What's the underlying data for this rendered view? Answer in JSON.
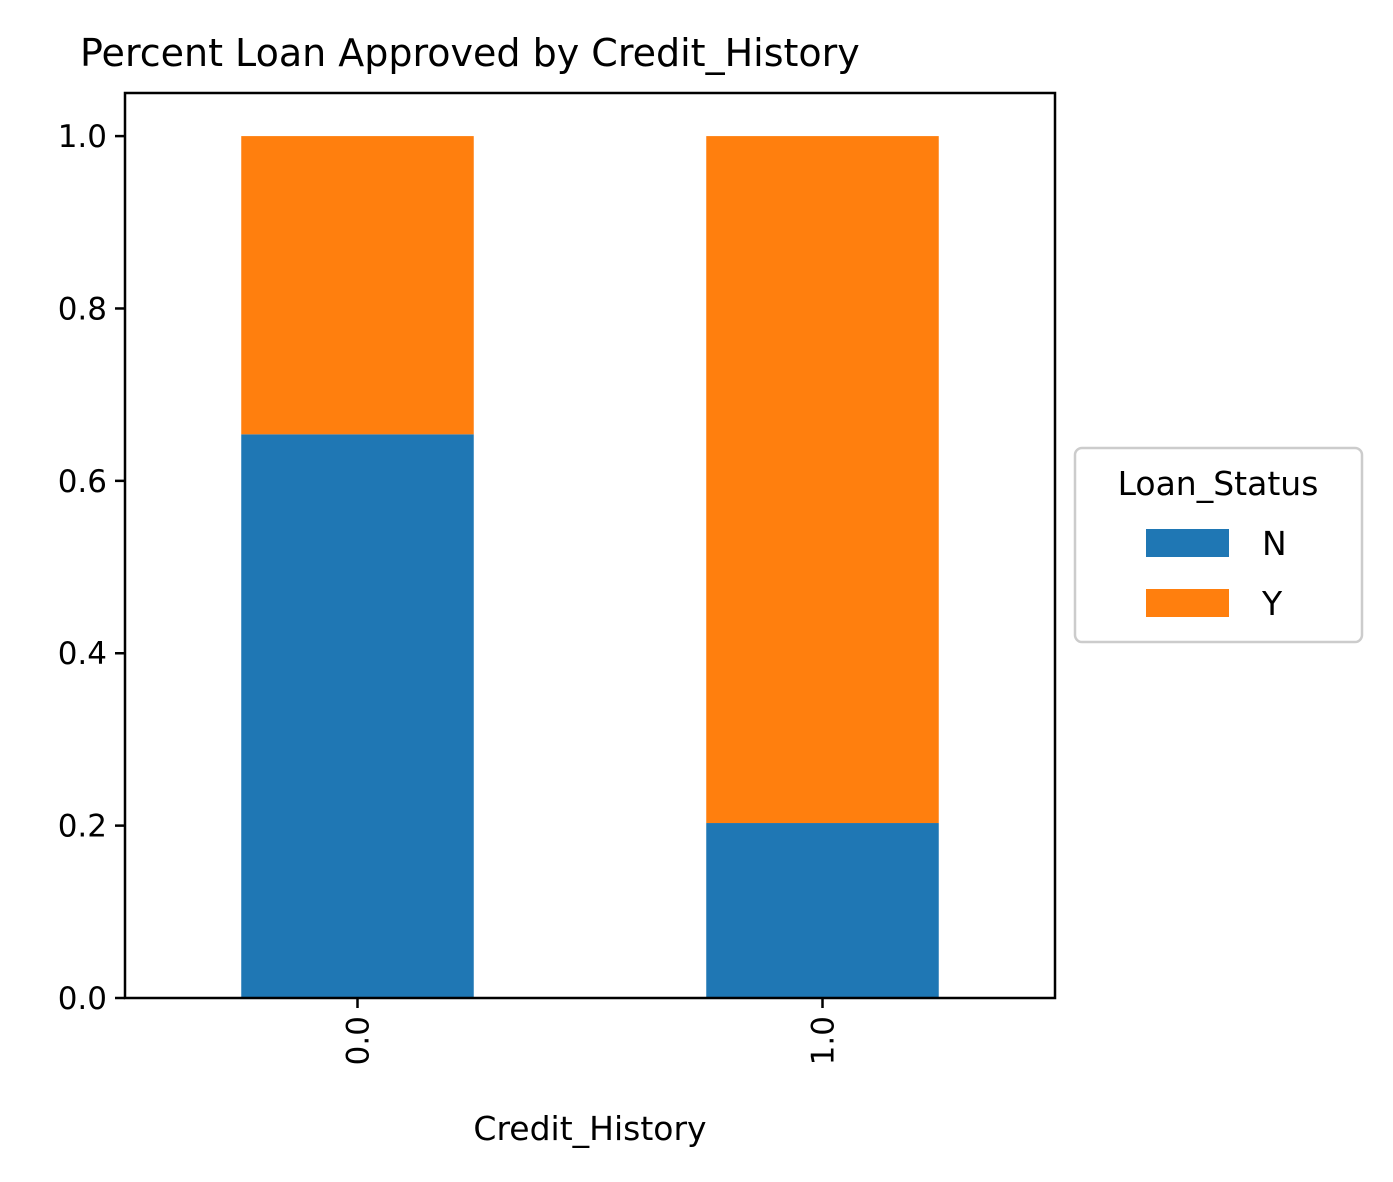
{
  "chart_data": {
    "type": "bar",
    "stacked": true,
    "title": "Percent Loan Approved by Credit_History",
    "xlabel": "Credit_History",
    "ylabel": "",
    "categories": [
      "0.0",
      "1.0"
    ],
    "series": [
      {
        "name": "N",
        "values": [
          0.654,
          0.203
        ],
        "color": "#1f77b4"
      },
      {
        "name": "Y",
        "values": [
          0.346,
          0.797
        ],
        "color": "#ff7f0e"
      }
    ],
    "ylim": [
      0,
      1.05
    ],
    "yticks": [
      {
        "value": 0.0,
        "label": "0.0"
      },
      {
        "value": 0.2,
        "label": "0.2"
      },
      {
        "value": 0.4,
        "label": "0.4"
      },
      {
        "value": 0.6,
        "label": "0.6"
      },
      {
        "value": 0.8,
        "label": "0.8"
      },
      {
        "value": 1.0,
        "label": "1.0"
      }
    ],
    "xtick_rotation": 90,
    "grid": false,
    "legend": {
      "title": "Loan_Status",
      "placement": "center-right outside"
    }
  }
}
